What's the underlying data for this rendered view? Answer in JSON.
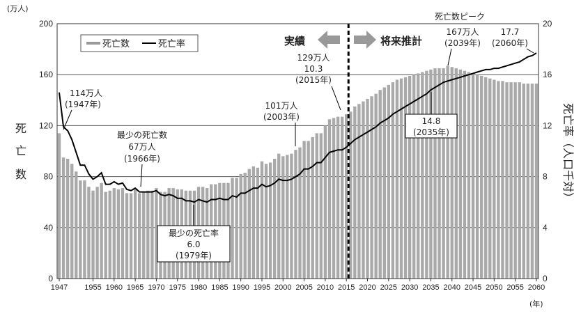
{
  "chart_data": {
    "type": "bar+line",
    "units": {
      "left": "(万人)",
      "year": "(年)"
    },
    "left_axis": {
      "label": "死亡数",
      "ylim": [
        0,
        200
      ],
      "ticks": [
        0,
        40,
        80,
        120,
        160,
        200
      ]
    },
    "right_axis": {
      "label": "死亡率（人口千対）",
      "ylim": [
        0,
        20
      ],
      "ticks": [
        0,
        4,
        8,
        12,
        16,
        20
      ]
    },
    "x_ticks": [
      "1947",
      "1955",
      "1960",
      "1965",
      "1970",
      "1975",
      "1980",
      "1985",
      "1990",
      "1995",
      "2000",
      "2005",
      "2010",
      "2015",
      "2020",
      "2025",
      "2030",
      "2035",
      "2040",
      "2045",
      "2050",
      "2055",
      "2060"
    ],
    "regions": {
      "actual": "実績",
      "projection": "将来推計",
      "split_year": 2016
    },
    "legend": [
      "死亡数",
      "死亡率"
    ],
    "series": [
      {
        "name": "死亡数",
        "years": [
          1947,
          1948,
          1949,
          1950,
          1951,
          1952,
          1953,
          1954,
          1955,
          1956,
          1957,
          1958,
          1959,
          1960,
          1961,
          1962,
          1963,
          1964,
          1965,
          1966,
          1967,
          1968,
          1969,
          1970,
          1971,
          1972,
          1973,
          1974,
          1975,
          1976,
          1977,
          1978,
          1979,
          1980,
          1981,
          1982,
          1983,
          1984,
          1985,
          1986,
          1987,
          1988,
          1989,
          1990,
          1991,
          1992,
          1993,
          1994,
          1995,
          1996,
          1997,
          1998,
          1999,
          2000,
          2001,
          2002,
          2003,
          2004,
          2005,
          2006,
          2007,
          2008,
          2009,
          2010,
          2011,
          2012,
          2013,
          2014,
          2015,
          2016,
          2017,
          2018,
          2019,
          2020,
          2021,
          2022,
          2023,
          2024,
          2025,
          2026,
          2027,
          2028,
          2029,
          2030,
          2031,
          2032,
          2033,
          2034,
          2035,
          2036,
          2037,
          2038,
          2039,
          2040,
          2041,
          2042,
          2043,
          2044,
          2045,
          2046,
          2047,
          2048,
          2049,
          2050,
          2051,
          2052,
          2053,
          2054,
          2055,
          2056,
          2057,
          2058,
          2059,
          2060
        ],
        "values": [
          114,
          95,
          94,
          90,
          84,
          77,
          77,
          72,
          69,
          72,
          75,
          68,
          69,
          71,
          70,
          71,
          67,
          67,
          70,
          67,
          68,
          69,
          69,
          71,
          68,
          68,
          71,
          71,
          70,
          70,
          69,
          69,
          69,
          72,
          72,
          71,
          74,
          74,
          75,
          75,
          75,
          79,
          79,
          82,
          83,
          86,
          88,
          87,
          92,
          90,
          91,
          94,
          98,
          96,
          97,
          98,
          101,
          103,
          108,
          108,
          111,
          114,
          114,
          120,
          125,
          126,
          127,
          127,
          129,
          131,
          135,
          137,
          139,
          141,
          143,
          145,
          148,
          150,
          152,
          154,
          156,
          157,
          158,
          159,
          160,
          161,
          162,
          163,
          164,
          165,
          165,
          165,
          167,
          166,
          165,
          164,
          163,
          162,
          161,
          160,
          159,
          158,
          157,
          156,
          155,
          155,
          154,
          154,
          154,
          154,
          153,
          153,
          153,
          153
        ]
      },
      {
        "name": "死亡率",
        "years": [
          1947,
          1948,
          1949,
          1950,
          1951,
          1952,
          1953,
          1954,
          1955,
          1956,
          1957,
          1958,
          1959,
          1960,
          1961,
          1962,
          1963,
          1964,
          1965,
          1966,
          1967,
          1968,
          1969,
          1970,
          1971,
          1972,
          1973,
          1974,
          1975,
          1976,
          1977,
          1978,
          1979,
          1980,
          1981,
          1982,
          1983,
          1984,
          1985,
          1986,
          1987,
          1988,
          1989,
          1990,
          1991,
          1992,
          1993,
          1994,
          1995,
          1996,
          1997,
          1998,
          1999,
          2000,
          2001,
          2002,
          2003,
          2004,
          2005,
          2006,
          2007,
          2008,
          2009,
          2010,
          2011,
          2012,
          2013,
          2014,
          2015,
          2016,
          2017,
          2018,
          2019,
          2020,
          2021,
          2022,
          2023,
          2024,
          2025,
          2026,
          2027,
          2028,
          2029,
          2030,
          2031,
          2032,
          2033,
          2034,
          2035,
          2036,
          2037,
          2038,
          2039,
          2040,
          2041,
          2042,
          2043,
          2044,
          2045,
          2046,
          2047,
          2048,
          2049,
          2050,
          2051,
          2052,
          2053,
          2054,
          2055,
          2056,
          2057,
          2058,
          2059,
          2060
        ],
        "values": [
          14.6,
          11.9,
          11.6,
          10.9,
          9.9,
          8.9,
          8.9,
          8.2,
          7.8,
          8.0,
          8.3,
          7.4,
          7.4,
          7.6,
          7.4,
          7.5,
          7.0,
          6.9,
          7.1,
          6.8,
          6.8,
          6.8,
          6.8,
          6.9,
          6.6,
          6.5,
          6.6,
          6.5,
          6.3,
          6.3,
          6.1,
          6.1,
          6.0,
          6.2,
          6.1,
          6.0,
          6.2,
          6.2,
          6.3,
          6.2,
          6.2,
          6.5,
          6.4,
          6.7,
          6.7,
          6.9,
          7.1,
          7.1,
          7.4,
          7.2,
          7.3,
          7.5,
          7.8,
          7.7,
          7.7,
          7.8,
          8.0,
          8.2,
          8.6,
          8.6,
          8.8,
          9.1,
          9.1,
          9.5,
          9.9,
          10.0,
          10.1,
          10.1,
          10.3,
          10.6,
          10.9,
          11.1,
          11.3,
          11.5,
          11.7,
          11.9,
          12.2,
          12.4,
          12.6,
          12.9,
          13.1,
          13.3,
          13.5,
          13.7,
          13.9,
          14.1,
          14.3,
          14.5,
          14.8,
          15.0,
          15.2,
          15.4,
          15.5,
          15.6,
          15.7,
          15.8,
          15.9,
          16.0,
          16.1,
          16.2,
          16.3,
          16.4,
          16.4,
          16.5,
          16.5,
          16.6,
          16.7,
          16.8,
          16.9,
          17.0,
          17.2,
          17.4,
          17.5,
          17.7
        ]
      }
    ],
    "annotations": {
      "a1947": {
        "l1": "114万人",
        "l2": "(1947年)"
      },
      "a1966": {
        "l1": "最少の死亡数",
        "l2": "67万人",
        "l3": "(1966年)"
      },
      "a1979": {
        "l1": "最少の死亡率",
        "l2": "6.0",
        "l3": "(1979年)"
      },
      "a2003": {
        "l1": "101万人",
        "l2": "(2003年)"
      },
      "a2015": {
        "l1": "129万人",
        "l2": "10.3",
        "l3": "(2015年)"
      },
      "a2035": {
        "l1": "14.8",
        "l2": "(2035年)"
      },
      "a2039": {
        "l0": "死亡数ピーク",
        "l1": "167万人",
        "l2": "(2039年)"
      },
      "a2060": {
        "l1": "17.7",
        "l2": "(2060年)"
      }
    }
  }
}
